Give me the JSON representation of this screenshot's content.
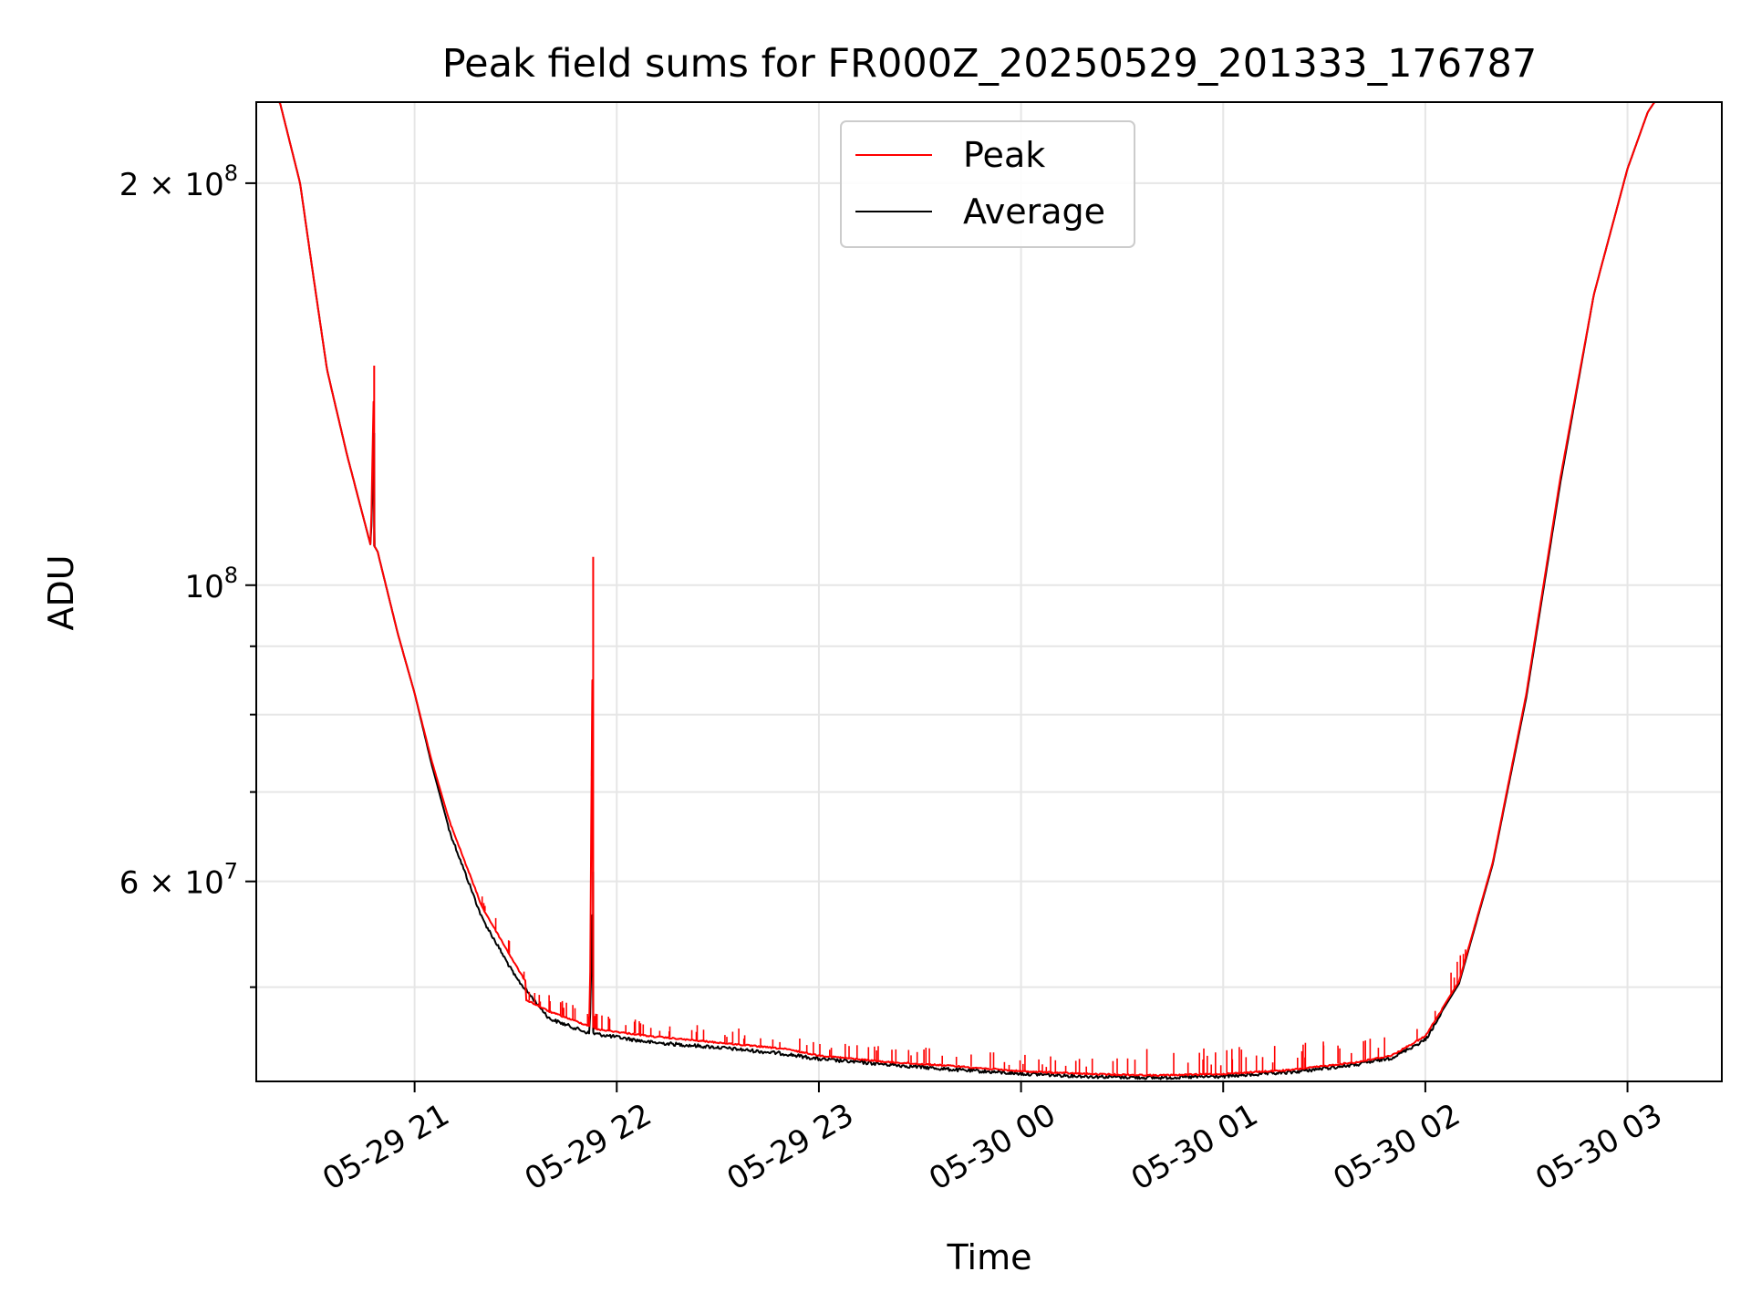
{
  "chart_data": {
    "type": "line",
    "title": "Peak field sums for FR000Z_20250529_201333_176787",
    "xlabel": "Time",
    "ylabel": "ADU",
    "x_scale": "time",
    "y_scale": "log",
    "xlim": [
      "2025-05-29 20:13",
      "2025-05-30 03:28"
    ],
    "ylim": [
      42500000,
      230000000
    ],
    "grid": true,
    "legend_position": "upper center",
    "x_tick_labels": [
      {
        "label": "05-29 21",
        "value": "2025-05-29 21:00"
      },
      {
        "label": "05-29 22",
        "value": "2025-05-29 22:00"
      },
      {
        "label": "05-29 23",
        "value": "2025-05-29 23:00"
      },
      {
        "label": "05-30 00",
        "value": "2025-05-30 00:00"
      },
      {
        "label": "05-30 01",
        "value": "2025-05-30 01:00"
      },
      {
        "label": "05-30 02",
        "value": "2025-05-30 02:00"
      },
      {
        "label": "05-30 03",
        "value": "2025-05-30 03:00"
      }
    ],
    "y_tick_labels": [
      {
        "mantissa": "2",
        "exponent": "8",
        "value": 200000000
      },
      {
        "mantissa": "",
        "exponent": "8",
        "value": 100000000
      },
      {
        "mantissa": "6",
        "exponent": "7",
        "value": 60000000
      }
    ],
    "y_minor_ticks": [
      50000000,
      70000000,
      80000000,
      90000000
    ],
    "series": [
      {
        "name": "Peak",
        "color": "#ff0000",
        "x": [
          "2025-05-29 20:13",
          "2025-05-29 20:20",
          "2025-05-29 20:26",
          "2025-05-29 20:30",
          "2025-05-29 20:34",
          "2025-05-29 20:40",
          "2025-05-29 20:47",
          "2025-05-29 20:48",
          "2025-05-29 20:48",
          "2025-05-29 20:49",
          "2025-05-29 20:55",
          "2025-05-29 21:00",
          "2025-05-29 21:05",
          "2025-05-29 21:10",
          "2025-05-29 21:20",
          "2025-05-29 21:30",
          "2025-05-29 21:33",
          "2025-05-29 21:33",
          "2025-05-29 21:33",
          "2025-05-29 21:40",
          "2025-05-29 21:52",
          "2025-05-29 21:52",
          "2025-05-29 21:53",
          "2025-05-29 21:53",
          "2025-05-29 22:10",
          "2025-05-29 22:30",
          "2025-05-29 22:50",
          "2025-05-29 23:00",
          "2025-05-29 23:20",
          "2025-05-29 23:40",
          "2025-05-30 00:00",
          "2025-05-30 00:20",
          "2025-05-30 00:40",
          "2025-05-30 01:00",
          "2025-05-30 01:20",
          "2025-05-30 01:40",
          "2025-05-30 01:50",
          "2025-05-30 02:00",
          "2025-05-30 02:10",
          "2025-05-30 02:20",
          "2025-05-30 02:30",
          "2025-05-30 02:40",
          "2025-05-30 02:50",
          "2025-05-30 03:00",
          "2025-05-30 03:06",
          "2025-05-30 03:08",
          "2025-05-30 03:28"
        ],
        "y": [
          230000000,
          230000000,
          200000000,
          170000000,
          145000000,
          125000000,
          107000000,
          146000000,
          107000000,
          106000000,
          92000000,
          83000000,
          74000000,
          67000000,
          57500000,
          52000000,
          50500000,
          50000000,
          49000000,
          48000000,
          46800000,
          46800000,
          105000000,
          46600000,
          46000000,
          45500000,
          45000000,
          44500000,
          44000000,
          43700000,
          43300000,
          43100000,
          43000000,
          43100000,
          43400000,
          44000000,
          44500000,
          46000000,
          50500000,
          62000000,
          83000000,
          120000000,
          165000000,
          205000000,
          226000000,
          230000000,
          230000000
        ]
      },
      {
        "name": "Average",
        "color": "#000000",
        "x": [
          "2025-05-29 20:13",
          "2025-05-29 20:20",
          "2025-05-29 20:26",
          "2025-05-29 20:30",
          "2025-05-29 20:34",
          "2025-05-29 20:40",
          "2025-05-29 20:47",
          "2025-05-29 20:48",
          "2025-05-29 20:48",
          "2025-05-29 20:49",
          "2025-05-29 20:55",
          "2025-05-29 21:00",
          "2025-05-29 21:05",
          "2025-05-29 21:10",
          "2025-05-29 21:20",
          "2025-05-29 21:30",
          "2025-05-29 21:40",
          "2025-05-29 21:52",
          "2025-05-29 21:52",
          "2025-05-29 21:53",
          "2025-05-29 21:53",
          "2025-05-29 22:10",
          "2025-05-29 22:30",
          "2025-05-29 22:50",
          "2025-05-29 23:00",
          "2025-05-29 23:20",
          "2025-05-29 23:40",
          "2025-05-30 00:00",
          "2025-05-30 00:20",
          "2025-05-30 00:40",
          "2025-05-30 01:00",
          "2025-05-30 01:20",
          "2025-05-30 01:40",
          "2025-05-30 01:50",
          "2025-05-30 02:00",
          "2025-05-30 02:10",
          "2025-05-30 02:20",
          "2025-05-30 02:30",
          "2025-05-30 02:40",
          "2025-05-30 02:50",
          "2025-05-30 03:00",
          "2025-05-30 03:06",
          "2025-05-30 03:08",
          "2025-05-30 03:28"
        ],
        "y": [
          230000000,
          230000000,
          200000000,
          170000000,
          145000000,
          125000000,
          107000000,
          130000000,
          107000000,
          106000000,
          92000000,
          83000000,
          73500000,
          66000000,
          56500000,
          51000000,
          47500000,
          46300000,
          46300000,
          61000000,
          46300000,
          45600000,
          45200000,
          44700000,
          44300000,
          43900000,
          43500000,
          43200000,
          43000000,
          42900000,
          43000000,
          43300000,
          43900000,
          44400000,
          45800000,
          50300000,
          61800000,
          82500000,
          119000000,
          165000000,
          205000000,
          226000000,
          230000000,
          230000000
        ]
      }
    ]
  }
}
